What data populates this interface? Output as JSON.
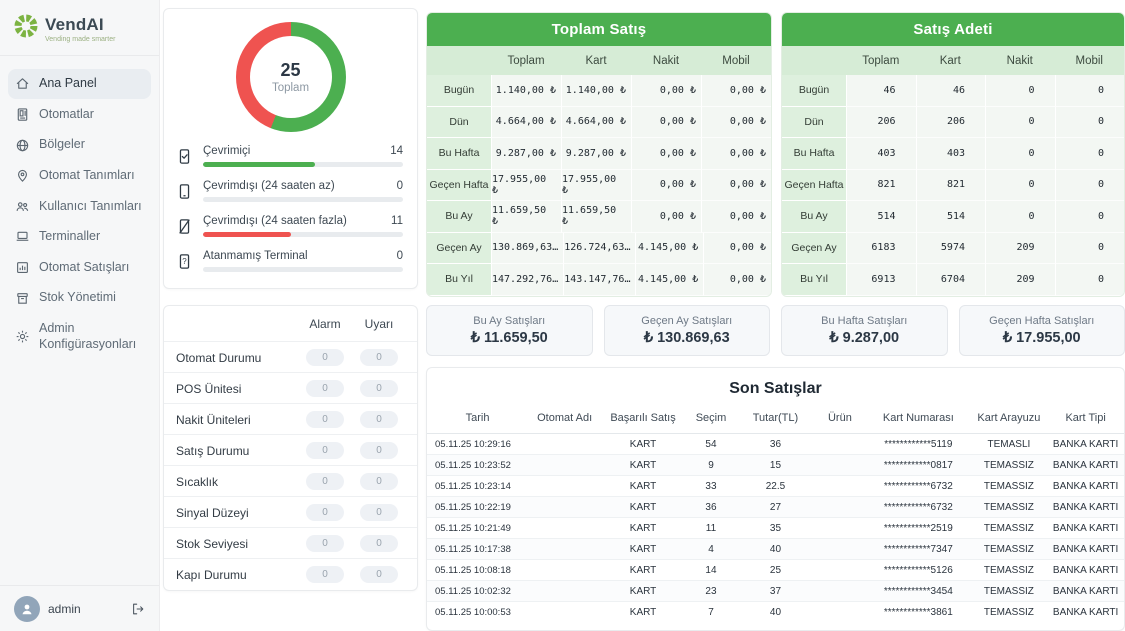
{
  "colors": {
    "accent_green": "#4caf50",
    "accent_red": "#ef5350",
    "banner_green": "#4caf50"
  },
  "sidebar": {
    "logo": {
      "title": "VendAI",
      "tagline": "Vending made smarter"
    },
    "items": [
      {
        "id": "ana-panel",
        "label": "Ana Panel",
        "icon": "home",
        "active": true
      },
      {
        "id": "otomatlar",
        "label": "Otomatlar",
        "icon": "machine",
        "active": false
      },
      {
        "id": "bolgeler",
        "label": "Bölgeler",
        "icon": "globe",
        "active": false
      },
      {
        "id": "otomat-tanimlari",
        "label": "Otomat Tanımları",
        "icon": "pin",
        "active": false
      },
      {
        "id": "kullanici-tanimlari",
        "label": "Kullanıcı Tanımları",
        "icon": "users",
        "active": false
      },
      {
        "id": "terminaller",
        "label": "Terminaller",
        "icon": "terminal",
        "active": false
      },
      {
        "id": "otomat-satislari",
        "label": "Otomat Satışları",
        "icon": "sales",
        "active": false
      },
      {
        "id": "stok-yonetimi",
        "label": "Stok Yönetimi",
        "icon": "stock",
        "active": false
      },
      {
        "id": "admin-konfigurasyonlari",
        "label": "Admin Konfigürasyonları",
        "icon": "gear",
        "active": false
      }
    ],
    "user": {
      "name": "admin"
    }
  },
  "status_card": {
    "donut": {
      "total": 25,
      "total_label": "Toplam"
    },
    "rows": [
      {
        "label": "Çevrimiçi",
        "value": 14,
        "pct": 56,
        "color": "#4caf50",
        "icon": "device-check"
      },
      {
        "label": "Çevrimdışı (24 saaten az)",
        "value": 0,
        "pct": 0,
        "color": "#4caf50",
        "icon": "device"
      },
      {
        "label": "Çevrimdışı (24 saaten fazla)",
        "value": 11,
        "pct": 44,
        "color": "#ef5350",
        "icon": "device-slash"
      },
      {
        "label": "Atanmamış Terminal",
        "value": 0,
        "pct": 0,
        "color": "#4caf50",
        "icon": "device-question"
      }
    ]
  },
  "alarm_table": {
    "columns": [
      "Alarm",
      "Uyarı"
    ],
    "rows": [
      {
        "id": "otomat-durumu",
        "label": "Otomat Durumu",
        "alarm": "0",
        "uyari": "0"
      },
      {
        "id": "pos-unitesi",
        "label": "POS Ünitesi",
        "alarm": "0",
        "uyari": "0"
      },
      {
        "id": "nakit-uniteleri",
        "label": "Nakit Üniteleri",
        "alarm": "0",
        "uyari": "0"
      },
      {
        "id": "satis-durumu",
        "label": "Satış Durumu",
        "alarm": "0",
        "uyari": "0"
      },
      {
        "id": "sicaklik",
        "label": "Sıcaklık",
        "alarm": "0",
        "uyari": "0"
      },
      {
        "id": "sinyal-duzeyi",
        "label": "Sinyal Düzeyi",
        "alarm": "0",
        "uyari": "0"
      },
      {
        "id": "stok-seviyesi",
        "label": "Stok Seviyesi",
        "alarm": "0",
        "uyari": "0"
      },
      {
        "id": "kapi-durumu",
        "label": "Kapı Durumu",
        "alarm": "0",
        "uyari": "0"
      }
    ]
  },
  "toplam_satis": {
    "title": "Toplam Satış",
    "columns": [
      "Toplam",
      "Kart",
      "Nakit",
      "Mobil"
    ],
    "rows": [
      {
        "label": "Bugün",
        "values": [
          "1.140,00 ₺",
          "1.140,00 ₺",
          "0,00 ₺",
          "0,00 ₺"
        ]
      },
      {
        "label": "Dün",
        "values": [
          "4.664,00 ₺",
          "4.664,00 ₺",
          "0,00 ₺",
          "0,00 ₺"
        ]
      },
      {
        "label": "Bu Hafta",
        "values": [
          "9.287,00 ₺",
          "9.287,00 ₺",
          "0,00 ₺",
          "0,00 ₺"
        ]
      },
      {
        "label": "Geçen Hafta",
        "values": [
          "17.955,00 ₺",
          "17.955,00 ₺",
          "0,00 ₺",
          "0,00 ₺"
        ]
      },
      {
        "label": "Bu Ay",
        "values": [
          "11.659,50 ₺",
          "11.659,50 ₺",
          "0,00 ₺",
          "0,00 ₺"
        ]
      },
      {
        "label": "Geçen Ay",
        "values": [
          "130.869,63…",
          "126.724,63…",
          "4.145,00 ₺",
          "0,00 ₺"
        ]
      },
      {
        "label": "Bu Yıl",
        "values": [
          "147.292,76…",
          "143.147,76…",
          "4.145,00 ₺",
          "0,00 ₺"
        ]
      }
    ]
  },
  "satis_adeti": {
    "title": "Satış Adeti",
    "columns": [
      "Toplam",
      "Kart",
      "Nakit",
      "Mobil"
    ],
    "rows": [
      {
        "label": "Bugün",
        "values": [
          "46",
          "46",
          "0",
          "0"
        ]
      },
      {
        "label": "Dün",
        "values": [
          "206",
          "206",
          "0",
          "0"
        ]
      },
      {
        "label": "Bu Hafta",
        "values": [
          "403",
          "403",
          "0",
          "0"
        ]
      },
      {
        "label": "Geçen Hafta",
        "values": [
          "821",
          "821",
          "0",
          "0"
        ]
      },
      {
        "label": "Bu Ay",
        "values": [
          "514",
          "514",
          "0",
          "0"
        ]
      },
      {
        "label": "Geçen Ay",
        "values": [
          "6183",
          "5974",
          "209",
          "0"
        ]
      },
      {
        "label": "Bu Yıl",
        "values": [
          "6913",
          "6704",
          "209",
          "0"
        ]
      }
    ]
  },
  "summary_cards": [
    {
      "id": "bu-ay",
      "label": "Bu Ay Satışları",
      "value": "₺ 11.659,50"
    },
    {
      "id": "gecen-ay",
      "label": "Geçen Ay Satışları",
      "value": "₺ 130.869,63"
    },
    {
      "id": "bu-hafta",
      "label": "Bu Hafta Satışları",
      "value": "₺ 9.287,00"
    },
    {
      "id": "gecen-hafta",
      "label": "Geçen Hafta Satışları",
      "value": "₺ 17.955,00"
    }
  ],
  "son_satislar": {
    "title": "Son Satışlar",
    "columns": [
      "Tarih",
      "Otomat Adı",
      "Başarılı Satış",
      "Seçim",
      "Tutar(TL)",
      "Ürün",
      "Kart Numarası",
      "Kart Arayuzu",
      "Kart Tipi"
    ],
    "rows": [
      [
        "05.11.25 10:29:16",
        "",
        "KART",
        "54",
        "36",
        "",
        "************5119",
        "TEMASLI",
        "BANKA KARTI"
      ],
      [
        "05.11.25 10:23:52",
        "",
        "KART",
        "9",
        "15",
        "",
        "************0817",
        "TEMASSIZ",
        "BANKA KARTI"
      ],
      [
        "05.11.25 10:23:14",
        "",
        "KART",
        "33",
        "22.5",
        "",
        "************6732",
        "TEMASSIZ",
        "BANKA KARTI"
      ],
      [
        "05.11.25 10:22:19",
        "",
        "KART",
        "36",
        "27",
        "",
        "************6732",
        "TEMASSIZ",
        "BANKA KARTI"
      ],
      [
        "05.11.25 10:21:49",
        "",
        "KART",
        "11",
        "35",
        "",
        "************2519",
        "TEMASSIZ",
        "BANKA KARTI"
      ],
      [
        "05.11.25 10:17:38",
        "",
        "KART",
        "4",
        "40",
        "",
        "************7347",
        "TEMASSIZ",
        "BANKA KARTI"
      ],
      [
        "05.11.25 10:08:18",
        "",
        "KART",
        "14",
        "25",
        "",
        "************5126",
        "TEMASSIZ",
        "BANKA KARTI"
      ],
      [
        "05.11.25 10:02:32",
        "",
        "KART",
        "23",
        "37",
        "",
        "************3454",
        "TEMASSIZ",
        "BANKA KARTI"
      ],
      [
        "05.11.25 10:00:53",
        "",
        "KART",
        "7",
        "40",
        "",
        "************3861",
        "TEMASSIZ",
        "BANKA KARTI"
      ]
    ]
  },
  "chart_data": {
    "type": "pie",
    "title": "",
    "labels": [
      "Çevrimiçi",
      "Çevrimdışı (24 saaten fazla)"
    ],
    "values": [
      14,
      11
    ],
    "colors": [
      "#4caf50",
      "#ef5350"
    ],
    "center_label": "25 Toplam",
    "legend_position": "none"
  }
}
